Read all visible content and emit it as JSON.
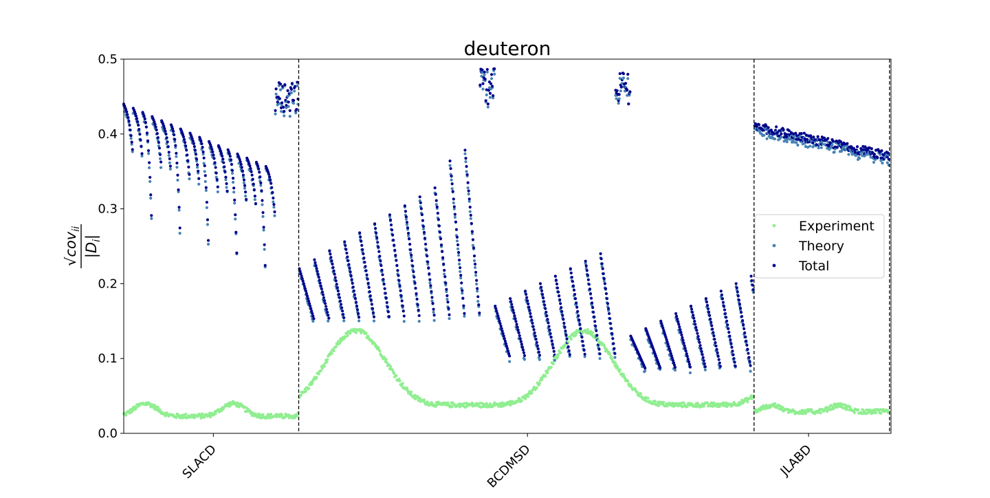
{
  "chart_data": {
    "type": "scatter",
    "title": "deuteron",
    "ylabel_numerator": "√cov",
    "ylabel_subscript": "ii",
    "ylabel_denominator": "|D",
    "ylabel_denominator_subscript": "i",
    "ylabel_denominator_close": "|",
    "ylim": [
      0,
      0.5
    ],
    "y_ticks": [
      "0.0",
      "0.1",
      "0.2",
      "0.3",
      "0.4",
      "0.5"
    ],
    "x_range": [
      0,
      1070
    ],
    "x_ticks": [
      {
        "label": "SLACD",
        "x": 125
      },
      {
        "label": "BCDMSD",
        "x": 563
      },
      {
        "label": "JLABD",
        "x": 955
      }
    ],
    "dataset_boundaries": [
      244,
      879,
      1068
    ],
    "legend": {
      "placement": "center-right",
      "entries": [
        "Experiment",
        "Theory",
        "Total"
      ]
    },
    "colors": {
      "experiment": "#90ee90",
      "theory": "#4682b4",
      "total": "#00008b",
      "boundary": "#000000"
    },
    "segments": [
      {
        "dataset": "SLACD",
        "x0": 0,
        "n": 240,
        "exp": [
          0.02,
          0.048
        ],
        "tot": "slac"
      },
      {
        "dataset": "BCDMSD",
        "x0": 245,
        "n": 634,
        "exp": [
          0.035,
          0.2
        ],
        "tot": "bcdms"
      },
      {
        "dataset": "JLABD",
        "x0": 880,
        "n": 188,
        "exp": [
          0.026,
          0.04
        ],
        "tot": "jlab"
      }
    ]
  }
}
